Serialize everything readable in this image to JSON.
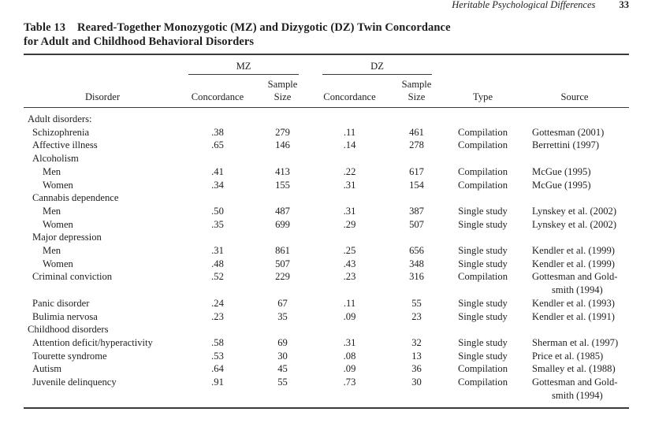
{
  "running_head": {
    "title": "Heritable Psychological Differences",
    "page_number": "33"
  },
  "title": {
    "label": "Table 13",
    "line1": "Reared-Together Monozygotic (MZ) and Dizygotic (DZ) Twin Concordance",
    "line2": "for Adult and Childhood Behavioral Disorders"
  },
  "table": {
    "col_groups": [
      "MZ",
      "DZ"
    ],
    "headers": [
      "Disorder",
      "Concordance",
      "Sample\nSize",
      "Concordance",
      "Sample\nSize",
      "Type",
      "Source"
    ],
    "rows": [
      {
        "indent": 0,
        "disorder": "Adult disorders:",
        "mz_concordance": "",
        "mz_sample_size": "",
        "dz_concordance": "",
        "dz_sample_size": "",
        "type": "",
        "source": ""
      },
      {
        "indent": 1,
        "disorder": "Schizophrenia",
        "mz_concordance": ".38",
        "mz_sample_size": "279",
        "dz_concordance": ".11",
        "dz_sample_size": "461",
        "type": "Compilation",
        "source": "Gottesman (2001)"
      },
      {
        "indent": 1,
        "disorder": "Affective illness",
        "mz_concordance": ".65",
        "mz_sample_size": "146",
        "dz_concordance": ".14",
        "dz_sample_size": "278",
        "type": "Compilation",
        "source": "Berrettini (1997)"
      },
      {
        "indent": 1,
        "disorder": "Alcoholism",
        "mz_concordance": "",
        "mz_sample_size": "",
        "dz_concordance": "",
        "dz_sample_size": "",
        "type": "",
        "source": ""
      },
      {
        "indent": 2,
        "disorder": "Men",
        "mz_concordance": ".41",
        "mz_sample_size": "413",
        "dz_concordance": ".22",
        "dz_sample_size": "617",
        "type": "Compilation",
        "source": "McGue (1995)"
      },
      {
        "indent": 2,
        "disorder": "Women",
        "mz_concordance": ".34",
        "mz_sample_size": "155",
        "dz_concordance": ".31",
        "dz_sample_size": "154",
        "type": "Compilation",
        "source": "McGue (1995)"
      },
      {
        "indent": 1,
        "disorder": "Cannabis dependence",
        "mz_concordance": "",
        "mz_sample_size": "",
        "dz_concordance": "",
        "dz_sample_size": "",
        "type": "",
        "source": ""
      },
      {
        "indent": 2,
        "disorder": "Men",
        "mz_concordance": ".50",
        "mz_sample_size": "487",
        "dz_concordance": ".31",
        "dz_sample_size": "387",
        "type": "Single study",
        "source": "Lynskey et al. (2002)"
      },
      {
        "indent": 2,
        "disorder": "Women",
        "mz_concordance": ".35",
        "mz_sample_size": "699",
        "dz_concordance": ".29",
        "dz_sample_size": "507",
        "type": "Single study",
        "source": "Lynskey et al. (2002)"
      },
      {
        "indent": 1,
        "disorder": "Major depression",
        "mz_concordance": "",
        "mz_sample_size": "",
        "dz_concordance": "",
        "dz_sample_size": "",
        "type": "",
        "source": ""
      },
      {
        "indent": 2,
        "disorder": "Men",
        "mz_concordance": ".31",
        "mz_sample_size": "861",
        "dz_concordance": ".25",
        "dz_sample_size": "656",
        "type": "Single study",
        "source": "Kendler et al. (1999)"
      },
      {
        "indent": 2,
        "disorder": "Women",
        "mz_concordance": ".48",
        "mz_sample_size": "507",
        "dz_concordance": ".43",
        "dz_sample_size": "348",
        "type": "Single study",
        "source": "Kendler et al. (1999)"
      },
      {
        "indent": 1,
        "disorder": "Criminal conviction",
        "mz_concordance": ".52",
        "mz_sample_size": "229",
        "dz_concordance": ".23",
        "dz_sample_size": "316",
        "type": "Compilation",
        "source": "Gottesman and Gold-",
        "source_cont": "smith (1994)"
      },
      {
        "indent": 1,
        "disorder": "Panic disorder",
        "mz_concordance": ".24",
        "mz_sample_size": "67",
        "dz_concordance": ".11",
        "dz_sample_size": "55",
        "type": "Single study",
        "source": "Kendler et al. (1993)"
      },
      {
        "indent": 1,
        "disorder": "Bulimia nervosa",
        "mz_concordance": ".23",
        "mz_sample_size": "35",
        "dz_concordance": ".09",
        "dz_sample_size": "23",
        "type": "Single study",
        "source": "Kendler et al. (1991)"
      },
      {
        "indent": 0,
        "disorder": "Childhood disorders",
        "mz_concordance": "",
        "mz_sample_size": "",
        "dz_concordance": "",
        "dz_sample_size": "",
        "type": "",
        "source": ""
      },
      {
        "indent": 1,
        "disorder": "Attention deficit/hyperactivity",
        "mz_concordance": ".58",
        "mz_sample_size": "69",
        "dz_concordance": ".31",
        "dz_sample_size": "32",
        "type": "Single study",
        "source": "Sherman et al. (1997)"
      },
      {
        "indent": 1,
        "disorder": "Tourette syndrome",
        "mz_concordance": ".53",
        "mz_sample_size": "30",
        "dz_concordance": ".08",
        "dz_sample_size": "13",
        "type": "Single study",
        "source": "Price et al. (1985)"
      },
      {
        "indent": 1,
        "disorder": "Autism",
        "mz_concordance": ".64",
        "mz_sample_size": "45",
        "dz_concordance": ".09",
        "dz_sample_size": "36",
        "type": "Compilation",
        "source": "Smalley et al. (1988)"
      },
      {
        "indent": 1,
        "disorder": "Juvenile delinquency",
        "mz_concordance": ".91",
        "mz_sample_size": "55",
        "dz_concordance": ".73",
        "dz_sample_size": "30",
        "type": "Compilation",
        "source": "Gottesman and Gold-",
        "source_cont": "smith (1994)"
      }
    ]
  },
  "colors": {
    "background": "#ffffff",
    "text": "#1e1e1e",
    "rule": "#3a3a3a"
  }
}
